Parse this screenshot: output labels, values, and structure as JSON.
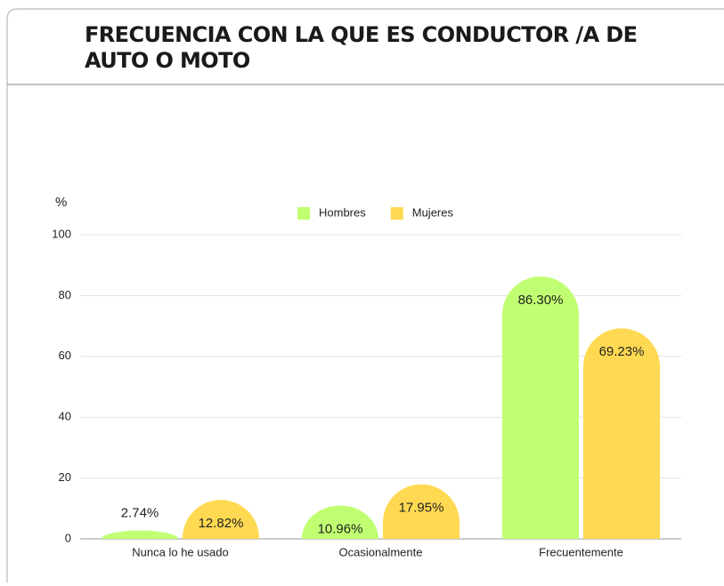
{
  "chart_data": {
    "type": "bar",
    "title": [
      "FRECUENCIA CON LA QUE ES CONDUCTOR /A DE",
      "AUTO O MOTO"
    ],
    "ylabel": "%",
    "categories": [
      "Nunca lo he usado",
      "Ocasionalmente",
      "Frecuentemente"
    ],
    "series": [
      {
        "name": "Hombres",
        "color": "#c1ff72",
        "values": [
          2.74,
          10.96,
          86.3
        ],
        "value_labels": [
          "2.74%",
          "10.96%",
          "86.30%"
        ]
      },
      {
        "name": "Mujeres",
        "color": "#ffd952",
        "values": [
          12.82,
          17.95,
          69.23
        ],
        "value_labels": [
          "12.82%",
          "17.95%",
          "69.23%"
        ]
      }
    ],
    "ylim": [
      0,
      100
    ],
    "yticks": [
      0,
      20,
      40,
      60,
      80,
      100
    ],
    "grid": true,
    "legend": "top"
  }
}
